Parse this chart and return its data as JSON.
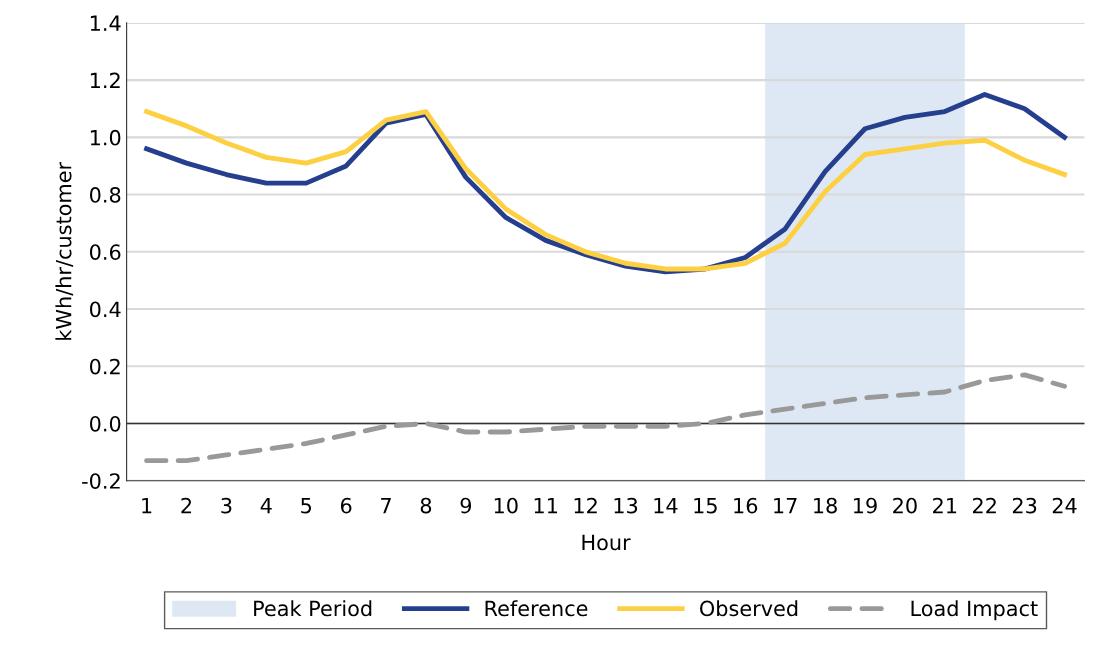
{
  "chart_data": {
    "type": "line",
    "xlabel": "Hour",
    "ylabel": "kWh/hr/customer",
    "x": [
      1,
      2,
      3,
      4,
      5,
      6,
      7,
      8,
      9,
      10,
      11,
      12,
      13,
      14,
      15,
      16,
      17,
      18,
      19,
      20,
      21,
      22,
      23,
      24
    ],
    "xlim": [
      0.5,
      24.5
    ],
    "xticks": [
      1,
      2,
      3,
      4,
      5,
      6,
      7,
      8,
      9,
      10,
      11,
      12,
      13,
      14,
      15,
      16,
      17,
      18,
      19,
      20,
      21,
      22,
      23,
      24
    ],
    "ylim": [
      -0.2,
      1.4
    ],
    "yticks": [
      {
        "value": -0.2,
        "label": "-0.2"
      },
      {
        "value": 0.0,
        "label": "0.0"
      },
      {
        "value": 0.2,
        "label": "0.2"
      },
      {
        "value": 0.4,
        "label": "0.4"
      },
      {
        "value": 0.6,
        "label": "0.6"
      },
      {
        "value": 0.8,
        "label": "0.8"
      },
      {
        "value": 1.0,
        "label": "1.0"
      },
      {
        "value": 1.2,
        "label": "1.2"
      },
      {
        "value": 1.4,
        "label": "1.4"
      }
    ],
    "grid": "y",
    "legend": "bottom",
    "bands": [
      {
        "axis": "x",
        "from": 16.5,
        "to": 21.5,
        "label": "Peak Period",
        "color": "#dde8f4"
      }
    ],
    "series": [
      {
        "name": "Reference",
        "color": "#253f8e",
        "line_style": "solid",
        "values": [
          0.96,
          0.91,
          0.87,
          0.84,
          0.84,
          0.9,
          1.05,
          1.08,
          0.86,
          0.72,
          0.64,
          0.59,
          0.55,
          0.53,
          0.54,
          0.58,
          0.68,
          0.88,
          1.03,
          1.07,
          1.09,
          1.15,
          1.1,
          1.0
        ]
      },
      {
        "name": "Observed",
        "color": "#fdd043",
        "line_style": "solid",
        "values": [
          1.09,
          1.04,
          0.98,
          0.93,
          0.91,
          0.95,
          1.06,
          1.09,
          0.89,
          0.75,
          0.66,
          0.6,
          0.56,
          0.54,
          0.54,
          0.56,
          0.63,
          0.81,
          0.94,
          0.96,
          0.98,
          0.99,
          0.92,
          0.87
        ]
      },
      {
        "name": "Load Impact",
        "color": "#999999",
        "line_style": "dashed",
        "values": [
          -0.13,
          -0.13,
          -0.11,
          -0.09,
          -0.07,
          -0.04,
          -0.01,
          0.0,
          -0.03,
          -0.03,
          -0.02,
          -0.01,
          -0.01,
          -0.01,
          0.0,
          0.03,
          0.05,
          0.07,
          0.09,
          0.1,
          0.11,
          0.15,
          0.17,
          0.13
        ]
      }
    ]
  }
}
